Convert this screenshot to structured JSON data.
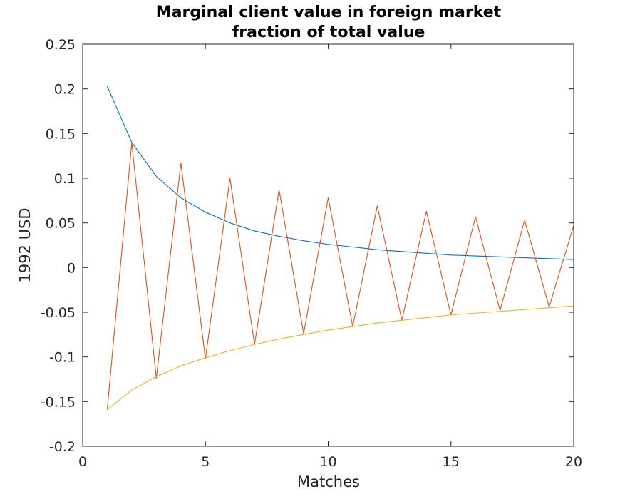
{
  "chart_data": {
    "type": "line",
    "title": [
      "Marginal client value in foreign market",
      "fraction of total value"
    ],
    "xlabel": "Matches",
    "ylabel": "1992 USD",
    "xlim": [
      0,
      20
    ],
    "ylim": [
      -0.2,
      0.25
    ],
    "xticks": [
      "0",
      "5",
      "10",
      "15",
      "20"
    ],
    "yticks": [
      "-0.2",
      "-0.15",
      "-0.1",
      "-0.05",
      "0",
      "0.05",
      "0.1",
      "0.15",
      "0.2",
      "0.25"
    ],
    "grid": false,
    "x": [
      1,
      2,
      3,
      4,
      5,
      6,
      7,
      8,
      9,
      10,
      11,
      12,
      13,
      14,
      15,
      16,
      17,
      18,
      19,
      20
    ],
    "series": [
      {
        "color": "#0072BD",
        "values": [
          0.203,
          0.14,
          0.102,
          0.078,
          0.062,
          0.05,
          0.041,
          0.035,
          0.03,
          0.026,
          0.023,
          0.02,
          0.018,
          0.016,
          0.014,
          0.013,
          0.012,
          0.011,
          0.01,
          0.009
        ]
      },
      {
        "color": "#D95319",
        "values": [
          -0.159,
          0.14,
          -0.124,
          0.117,
          -0.102,
          0.1,
          -0.086,
          0.087,
          -0.074,
          0.078,
          -0.066,
          0.069,
          -0.059,
          0.063,
          -0.053,
          0.057,
          -0.048,
          0.053,
          -0.044,
          0.047
        ]
      },
      {
        "color": "#EDB120",
        "values": [
          -0.159,
          -0.137,
          -0.122,
          -0.11,
          -0.101,
          -0.093,
          -0.086,
          -0.08,
          -0.075,
          -0.07,
          -0.066,
          -0.062,
          -0.059,
          -0.056,
          -0.053,
          -0.051,
          -0.049,
          -0.047,
          -0.045,
          -0.043
        ]
      }
    ]
  }
}
